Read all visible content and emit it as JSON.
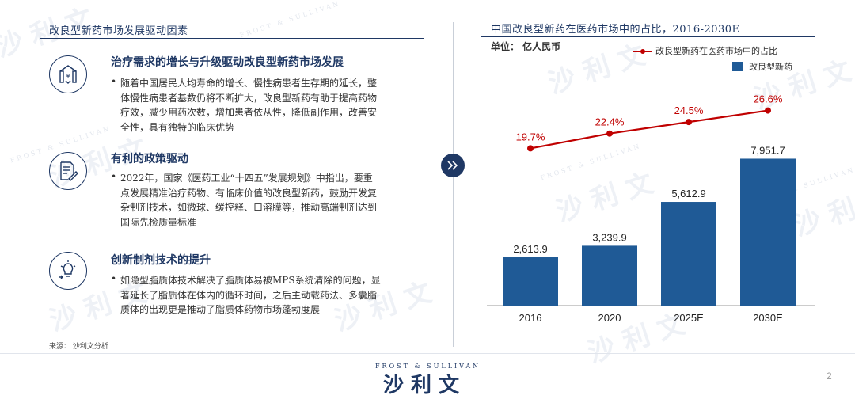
{
  "left": {
    "title": "改良型新药市场发展驱动因素",
    "drivers": [
      {
        "icon": "money-growth-icon",
        "heading": "治疗需求的增长与升级驱动改良型新药市场发展",
        "bullet_lines": [
          "随着中国居民人均寿命的增长、慢性病患者生存期的延长，整",
          "体慢性病患者基数仍将不断扩大，改良型新药有助于提高药物",
          "疗效，减少用药次数，增加患者依从性，降低副作用，改善安",
          "全性，具有独特的临床优势"
        ]
      },
      {
        "icon": "policy-document-icon",
        "heading": "有利的政策驱动",
        "bullet_lines": [
          "2022年，国家《医药工业“十四五”发展规划》中指出，要重",
          "点发展精准治疗药物、有临床价值的改良型新药，鼓励开发复",
          "杂制剂技术，如微球、缓控释、口溶膜等，推动高端制剂达到",
          "国际先检质量标准"
        ]
      },
      {
        "icon": "innovation-bulb-icon",
        "heading": "创新制剂技术的提升",
        "bullet_lines": [
          "如隐型脂质体技术解决了脂质体易被MPS系统清除的问题，显",
          "著延长了脂质体在体内的循环时间，之后主动载药法、多囊脂",
          "质体的出现更是推动了脂质体药物市场蓬勃度展"
        ]
      }
    ]
  },
  "right": {
    "title": "中国改良型新药在医药市场中的占比，2016-2030E",
    "unit": "单位： 亿人民币"
  },
  "chart_data": {
    "type": "bar",
    "categories": [
      "2016",
      "2020",
      "2025E",
      "2030E"
    ],
    "series": [
      {
        "name": "改良型新药",
        "kind": "bar",
        "values": [
          2613.9,
          3239.9,
          5612.9,
          7951.7
        ],
        "labels": [
          "2,613.9",
          "3,239.9",
          "5,612.9",
          "7,951.7"
        ]
      },
      {
        "name": "改良型新药在医药市场中的占比",
        "kind": "line",
        "values": [
          19.7,
          22.4,
          24.5,
          26.6
        ],
        "labels": [
          "19.7%",
          "22.4%",
          "24.5%",
          "26.6%"
        ]
      }
    ],
    "bar_ylim": [
      0,
      9000
    ],
    "line_ylim": [
      0,
      30
    ],
    "grid": false,
    "legend_position": "top-right"
  },
  "colors": {
    "navy": "#1f3864",
    "bar": "#1f5a96",
    "line": "#c00000"
  },
  "source": "来源： 沙利文分析",
  "page_number": "2",
  "brand": {
    "small": "FROST & SULLIVAN",
    "big": "沙 利 文"
  },
  "watermarks": {
    "big": "沙 利 文",
    "small": "FROST & SULLIVAN"
  }
}
